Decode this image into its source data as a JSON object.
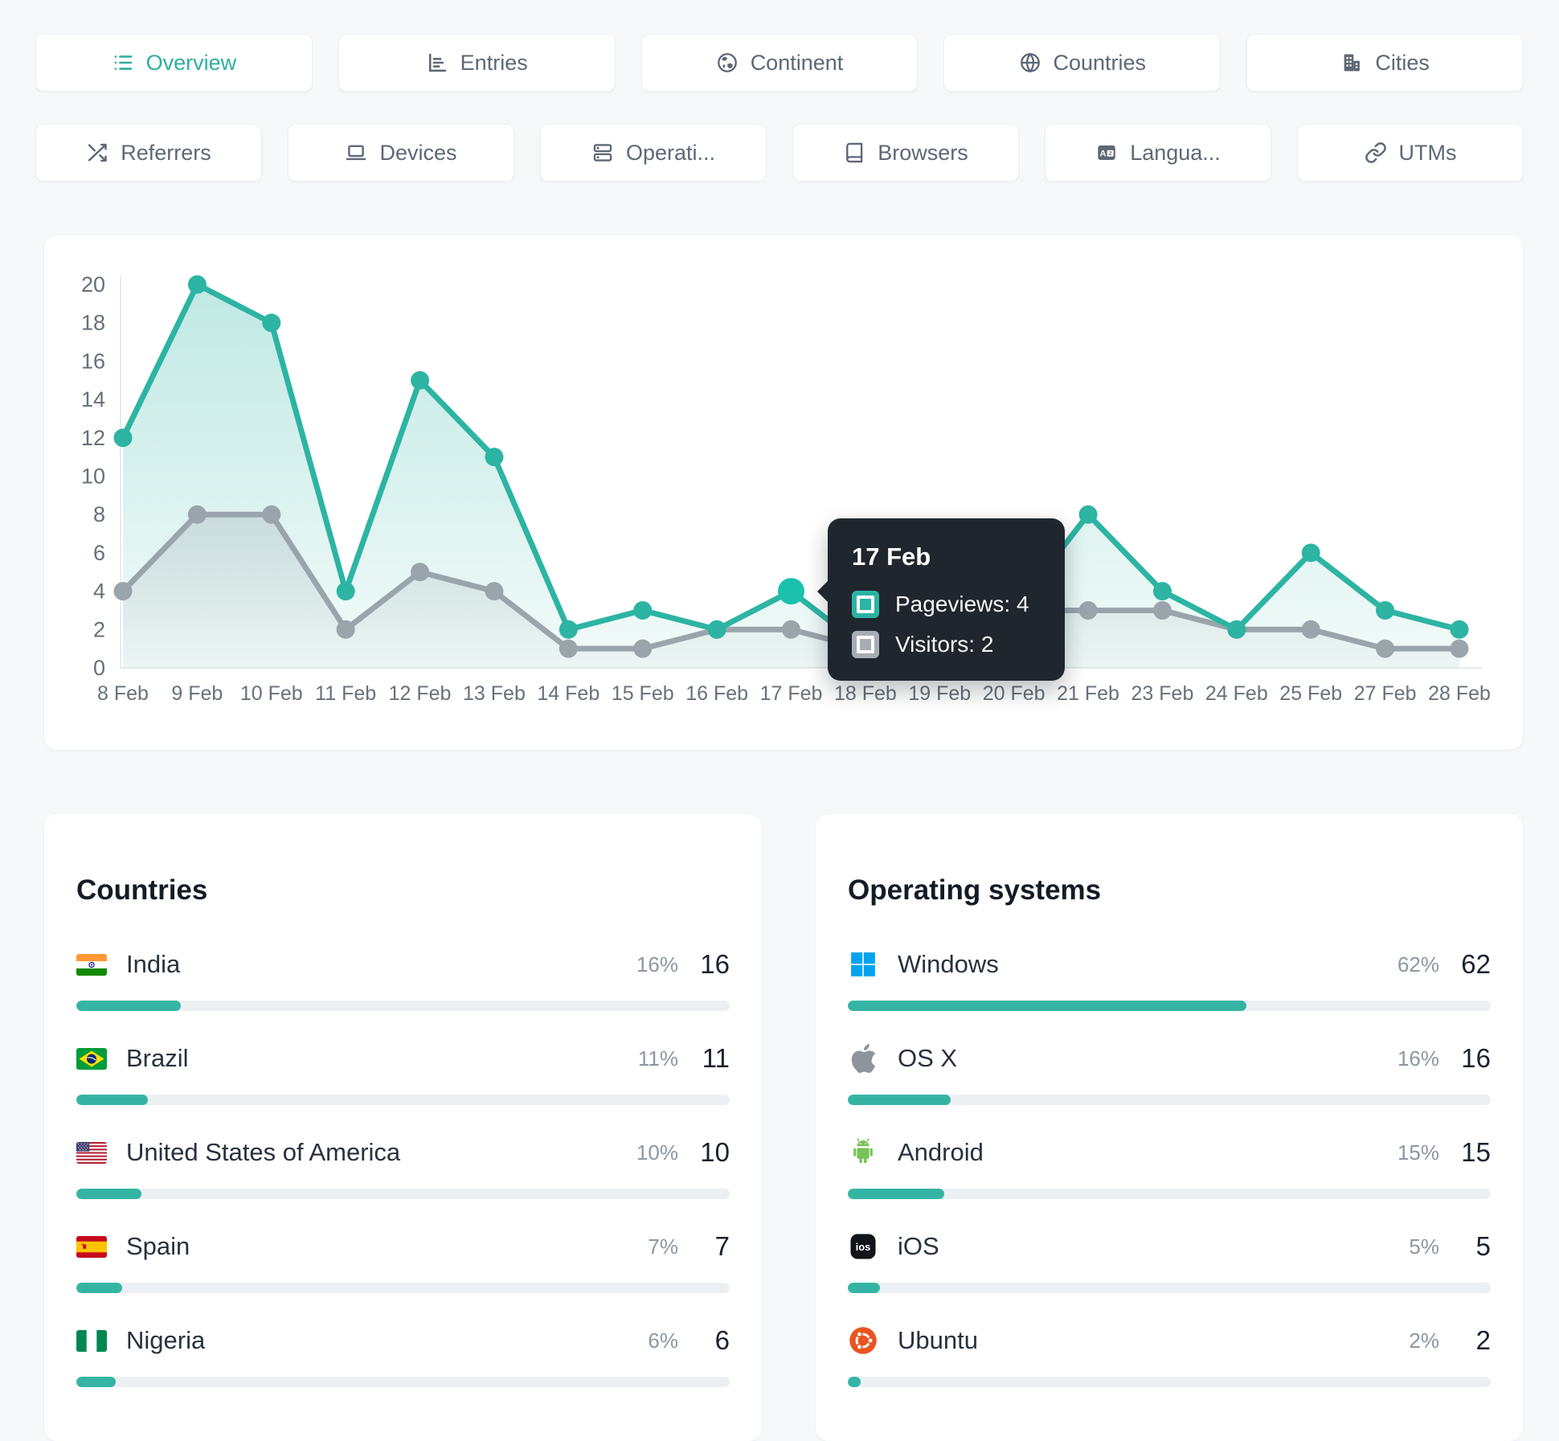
{
  "accent": "#2fae9f",
  "tabs": {
    "row1": [
      {
        "label": "Overview",
        "icon": "list-icon",
        "active": true
      },
      {
        "label": "Entries",
        "icon": "chart-icon",
        "active": false
      },
      {
        "label": "Continent",
        "icon": "continent-icon",
        "active": false
      },
      {
        "label": "Countries",
        "icon": "globe-icon",
        "active": false
      },
      {
        "label": "Cities",
        "icon": "city-icon",
        "active": false
      }
    ],
    "row2": [
      {
        "label": "Referrers",
        "icon": "shuffle-icon",
        "active": false
      },
      {
        "label": "Devices",
        "icon": "laptop-icon",
        "active": false
      },
      {
        "label": "Operati...",
        "icon": "server-icon",
        "active": false
      },
      {
        "label": "Browsers",
        "icon": "browser-icon",
        "active": false
      },
      {
        "label": "Langua...",
        "icon": "language-icon",
        "active": false
      },
      {
        "label": "UTMs",
        "icon": "link-icon",
        "active": false
      }
    ]
  },
  "chart_data": {
    "type": "line",
    "x": [
      "8 Feb",
      "9 Feb",
      "10 Feb",
      "11 Feb",
      "12 Feb",
      "13 Feb",
      "14 Feb",
      "15 Feb",
      "16 Feb",
      "17 Feb",
      "18 Feb",
      "19 Feb",
      "20 Feb",
      "21 Feb",
      "23 Feb",
      "24 Feb",
      "25 Feb",
      "27 Feb",
      "28 Feb"
    ],
    "series": [
      {
        "name": "Pageviews",
        "color": "#2db4a3",
        "fill_rgb": "45,180,163",
        "values": [
          12,
          20,
          18,
          4,
          15,
          11,
          2,
          3,
          2,
          4,
          1,
          1,
          3,
          8,
          4,
          2,
          6,
          3,
          2
        ]
      },
      {
        "name": "Visitors",
        "color": "#9aa4ab",
        "fill_rgb": "152,164,171",
        "values": [
          4,
          8,
          8,
          2,
          5,
          4,
          1,
          1,
          2,
          2,
          1,
          1,
          3,
          3,
          3,
          2,
          2,
          1,
          1
        ]
      }
    ],
    "ylim": [
      0,
      20
    ],
    "yticks": [
      0,
      2,
      4,
      6,
      8,
      10,
      12,
      14,
      16,
      18,
      20
    ],
    "grid": false,
    "legend_position": "tooltip-only",
    "highlight": {
      "series": "Pageviews",
      "index": 9,
      "color": "#1bc1ad"
    }
  },
  "tooltip": {
    "title": "17 Feb",
    "rows": [
      {
        "label": "Pageviews",
        "value": 4,
        "marker_color": "#2bb3a3"
      },
      {
        "label": "Visitors",
        "value": 2,
        "marker_color": "#a6adb4"
      }
    ],
    "bg_color": "#20262d"
  },
  "panels": [
    {
      "title": "Countries",
      "rows": [
        {
          "icon": "flag-india",
          "label": "India",
          "pct": 16,
          "value": 16
        },
        {
          "icon": "flag-brazil",
          "label": "Brazil",
          "pct": 11,
          "value": 11
        },
        {
          "icon": "flag-usa",
          "label": "United States of America",
          "pct": 10,
          "value": 10
        },
        {
          "icon": "flag-spain",
          "label": "Spain",
          "pct": 7,
          "value": 7
        },
        {
          "icon": "flag-nigeria",
          "label": "Nigeria",
          "pct": 6,
          "value": 6
        }
      ]
    },
    {
      "title": "Operating systems",
      "rows": [
        {
          "icon": "windows-icon",
          "label": "Windows",
          "pct": 62,
          "value": 62
        },
        {
          "icon": "apple-icon",
          "label": "OS X",
          "pct": 16,
          "value": 16
        },
        {
          "icon": "android-icon",
          "label": "Android",
          "pct": 15,
          "value": 15
        },
        {
          "icon": "ios-icon",
          "label": "iOS",
          "pct": 5,
          "value": 5
        },
        {
          "icon": "ubuntu-icon",
          "label": "Ubuntu",
          "pct": 2,
          "value": 2
        }
      ]
    }
  ],
  "bar_fill_color": "#35b4a4",
  "bar_track_color": "#edf0f2"
}
